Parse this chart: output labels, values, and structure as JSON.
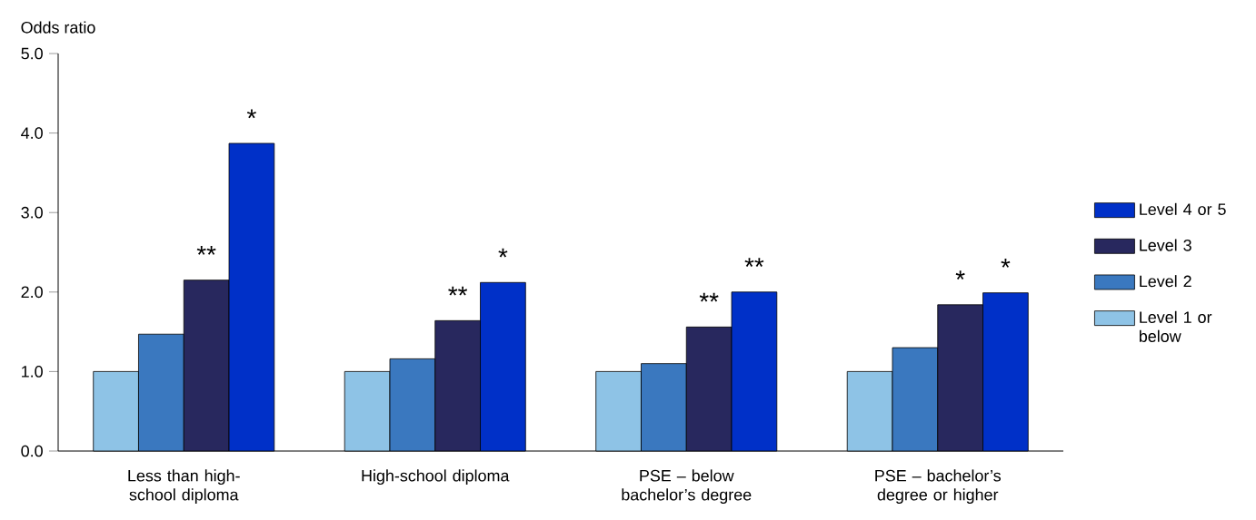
{
  "chart_data": {
    "type": "bar",
    "ylabel": "Odds ratio",
    "categories": [
      "Less than high-school diploma",
      "High-school diploma",
      "PSE – below bachelor’s degree",
      "PSE – bachelor’s degree or higher"
    ],
    "series": [
      {
        "name": "Level 1 or below",
        "color": "#8ec3e6",
        "values": [
          1.0,
          1.0,
          1.0,
          1.0
        ]
      },
      {
        "name": "Level 2",
        "color": "#3a78bf",
        "values": [
          1.47,
          1.16,
          1.1,
          1.3
        ]
      },
      {
        "name": "Level 3",
        "color": "#28285e",
        "values": [
          2.15,
          1.64,
          1.56,
          1.84
        ],
        "value_labels": [
          "**",
          "**",
          "**",
          "*"
        ]
      },
      {
        "name": "Level 4 or 5",
        "color": "#0030c8",
        "values": [
          3.87,
          2.12,
          2.0,
          1.99
        ],
        "value_labels": [
          "*",
          "*",
          "**",
          "*"
        ]
      }
    ],
    "ylim": [
      0,
      5
    ],
    "yticks": [
      {
        "value": 0,
        "label": "0.0"
      },
      {
        "value": 1,
        "label": "1.0"
      },
      {
        "value": 2,
        "label": "2.0"
      },
      {
        "value": 3,
        "label": "3.0"
      },
      {
        "value": 4,
        "label": "4.0"
      },
      {
        "value": 5,
        "label": "5.0"
      }
    ],
    "legend": "right"
  }
}
